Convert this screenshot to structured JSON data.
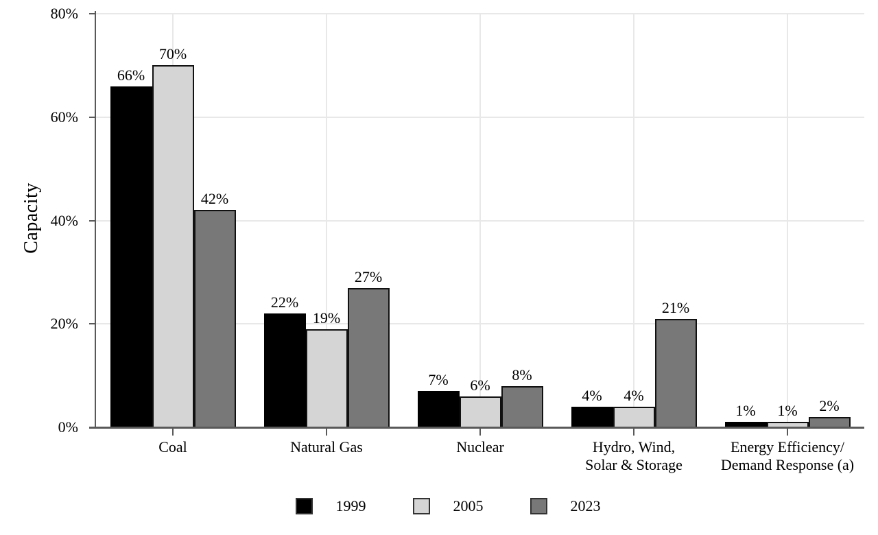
{
  "chart_data": {
    "type": "bar",
    "title": "",
    "xlabel": "",
    "ylabel": "Capacity",
    "categories": [
      "Coal",
      "Natural Gas",
      "Nuclear",
      "Hydro, Wind,\nSolar & Storage",
      "Energy Efficiency/\nDemand Response (a)"
    ],
    "series": [
      {
        "name": "1999",
        "color": "#000000",
        "values": [
          66,
          22,
          7,
          4,
          1
        ]
      },
      {
        "name": "2005",
        "color": "#d5d5d5",
        "values": [
          70,
          19,
          6,
          4,
          1
        ]
      },
      {
        "name": "2023",
        "color": "#787878",
        "values": [
          42,
          27,
          8,
          21,
          2
        ]
      }
    ],
    "value_suffix": "%",
    "y_ticks": [
      {
        "value": 0,
        "label": "0%"
      },
      {
        "value": 20,
        "label": "20%"
      },
      {
        "value": 40,
        "label": "40%"
      },
      {
        "value": 60,
        "label": "60%"
      },
      {
        "value": 80,
        "label": "80%"
      }
    ],
    "ylim": [
      0,
      80
    ],
    "grid": true,
    "legend_position": "bottom",
    "colors": {
      "axis": "#595959",
      "gridline": "#e8e8e8",
      "bar_border": "#111111",
      "text": "#000000",
      "background": "#ffffff"
    }
  }
}
